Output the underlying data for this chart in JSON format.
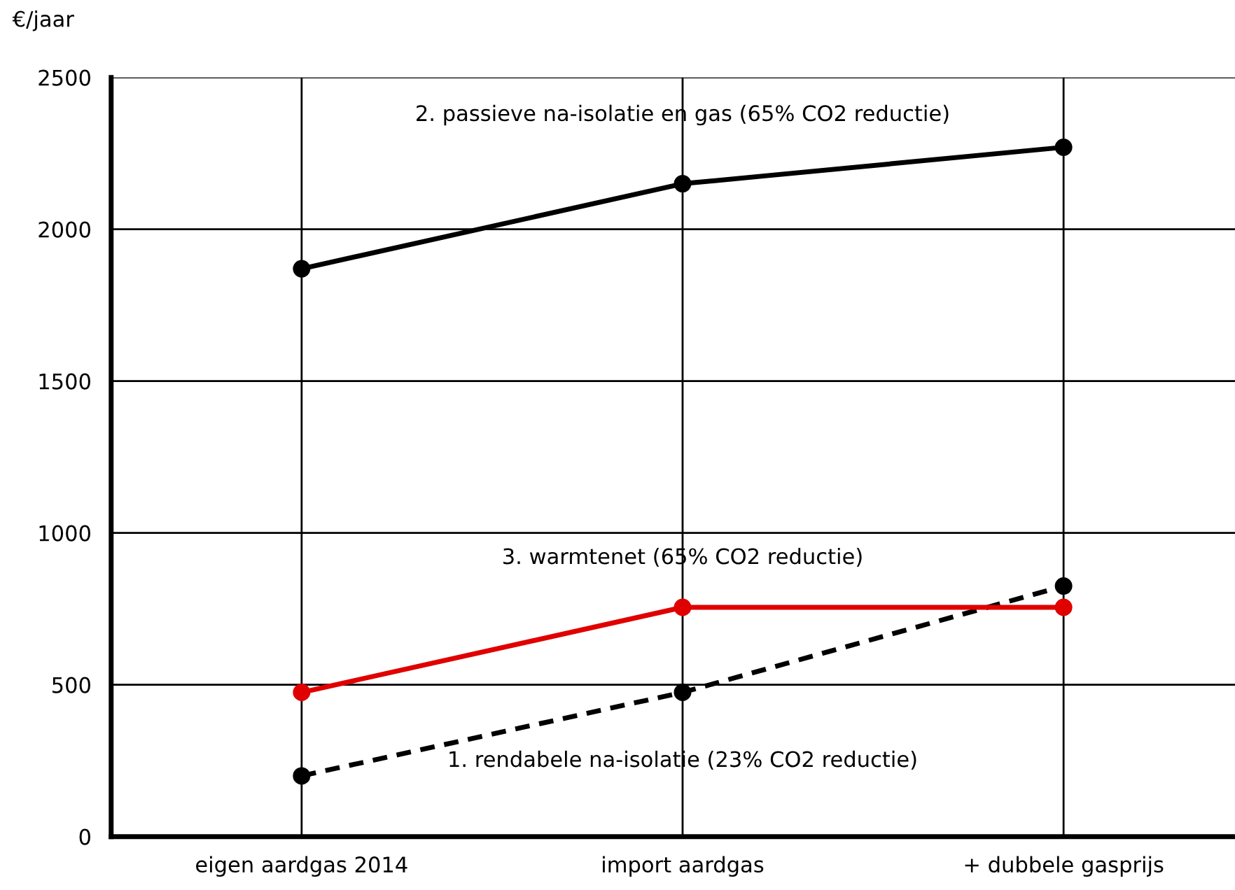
{
  "chart_data": {
    "type": "line",
    "ylabel": "€/jaar",
    "categories": [
      "eigen aardgas 2014",
      "import aardgas",
      "+ dubbele gasprijs"
    ],
    "series": [
      {
        "name": "1. rendabele na-isolatie (23% CO2 reductie)",
        "color": "#000000",
        "line_style": "dashed",
        "values": [
          200,
          475,
          825
        ]
      },
      {
        "name": "2. passieve na-isolatie en gas (65% CO2 reductie)",
        "color": "#000000",
        "line_style": "solid",
        "values": [
          1870,
          2150,
          2270
        ]
      },
      {
        "name": "3. warmtenet (65% CO2 reductie)",
        "color": "#e00000",
        "line_style": "solid",
        "values": [
          475,
          755,
          755
        ]
      }
    ],
    "ylim": [
      0,
      2500
    ],
    "yticks": [
      0,
      500,
      1000,
      1500,
      2000,
      2500
    ],
    "grid": true,
    "marker": "circle",
    "legend": false
  }
}
